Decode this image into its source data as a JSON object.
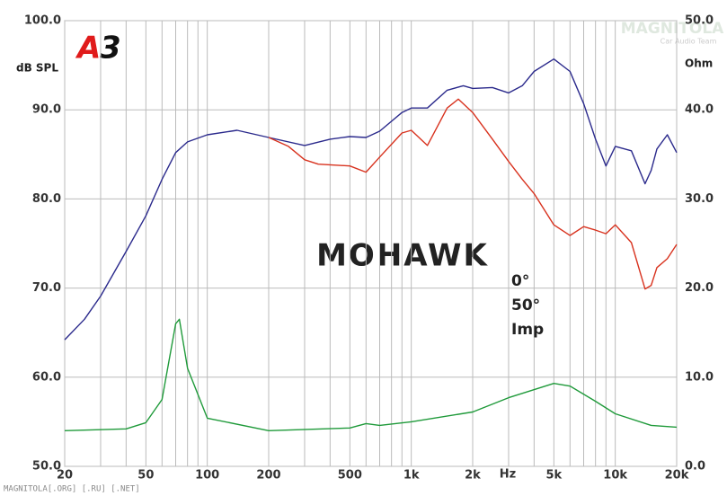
{
  "chart_data": {
    "type": "line",
    "title": "MOHAWK",
    "logo": [
      "A",
      "3"
    ],
    "watermark": [
      "MAGNITOLA",
      "Car Audio Team"
    ],
    "footer": "MAGNITOLA[.ORG] [.RU] [.NET]",
    "y_label": "dB SPL",
    "y2_label": "Ohm",
    "x_label": "Hz",
    "xlog": true,
    "grid": true,
    "xlim": [
      20,
      20000
    ],
    "xticks": [
      20,
      50,
      100,
      200,
      500,
      {
        "value": 1000,
        "label": "1k"
      },
      {
        "value": 2000,
        "label": "2k"
      },
      {
        "value": 5000,
        "label": "5k"
      },
      {
        "value": 10000,
        "label": "10k"
      },
      {
        "value": 20000,
        "label": "20k"
      }
    ],
    "xgrid": [
      20,
      30,
      40,
      50,
      60,
      70,
      80,
      90,
      100,
      200,
      300,
      400,
      500,
      600,
      700,
      800,
      900,
      1000,
      2000,
      3000,
      4000,
      5000,
      6000,
      7000,
      8000,
      9000,
      10000,
      20000
    ],
    "ylim": [
      50,
      100
    ],
    "yticks": [
      {
        "value": 50,
        "label": "50.0"
      },
      {
        "value": 60,
        "label": "60.0"
      },
      {
        "value": 70,
        "label": "70.0"
      },
      {
        "value": 80,
        "label": "80.0"
      },
      {
        "value": 90,
        "label": "90.0"
      },
      {
        "value": 100,
        "label": "100.0"
      }
    ],
    "y2lim": [
      0,
      50
    ],
    "y2ticks": [
      {
        "value": 0,
        "label": "0.0"
      },
      {
        "value": 10,
        "label": "10.0"
      },
      {
        "value": 20,
        "label": "20.0"
      },
      {
        "value": 30,
        "label": "30.0"
      },
      {
        "value": 40,
        "label": "40.0"
      },
      {
        "value": 50,
        "label": "50.0"
      }
    ],
    "series": [
      {
        "name": "0°",
        "color": "#2b2a8c",
        "x": [
          20,
          25,
          30,
          40,
          50,
          60,
          70,
          80,
          100,
          140,
          200,
          300,
          400,
          500,
          600,
          700,
          900,
          1000,
          1200,
          1500,
          1800,
          2000,
          2500,
          3000,
          3500,
          4000,
          5000,
          6000,
          7000,
          8000,
          9000,
          10000,
          12000,
          14000,
          15000,
          16000,
          18000,
          20000
        ],
        "values": [
          64.2,
          66.5,
          69.1,
          74.1,
          78.1,
          82.2,
          85.2,
          86.4,
          87.2,
          87.7,
          86.9,
          86.0,
          86.7,
          87.0,
          86.9,
          87.6,
          89.7,
          90.2,
          90.2,
          92.2,
          92.7,
          92.4,
          92.5,
          91.9,
          92.7,
          94.3,
          95.7,
          94.3,
          90.7,
          86.7,
          83.7,
          85.9,
          85.4,
          81.7,
          83.2,
          85.6,
          87.2,
          85.2
        ]
      },
      {
        "name": "50°",
        "color": "#d8321e",
        "x": [
          200,
          250,
          300,
          350,
          500,
          600,
          700,
          900,
          1000,
          1200,
          1500,
          1700,
          2000,
          2500,
          3000,
          3500,
          4000,
          5000,
          6000,
          7000,
          8000,
          9000,
          10000,
          12000,
          14000,
          15000,
          16000,
          18000,
          20000
        ],
        "values": [
          86.9,
          85.9,
          84.4,
          83.9,
          83.7,
          83.0,
          84.7,
          87.4,
          87.7,
          86.0,
          90.2,
          91.2,
          89.7,
          86.7,
          84.2,
          82.2,
          80.6,
          77.1,
          75.9,
          76.9,
          76.5,
          76.1,
          77.1,
          75.1,
          69.9,
          70.3,
          72.3,
          73.3,
          74.9
        ]
      },
      {
        "name": "Imp",
        "color": "#1f9a3a",
        "axis": "y2",
        "x": [
          20,
          40,
          50,
          60,
          70,
          73,
          80,
          100,
          200,
          500,
          600,
          700,
          1000,
          2000,
          3000,
          5000,
          6000,
          8000,
          10000,
          15000,
          20000
        ],
        "values": [
          4.0,
          4.2,
          4.9,
          7.5,
          16.0,
          16.5,
          11.0,
          5.4,
          4.0,
          4.3,
          4.8,
          4.6,
          5.0,
          6.1,
          7.7,
          9.3,
          9.0,
          7.3,
          5.9,
          4.6,
          4.4
        ]
      }
    ]
  }
}
